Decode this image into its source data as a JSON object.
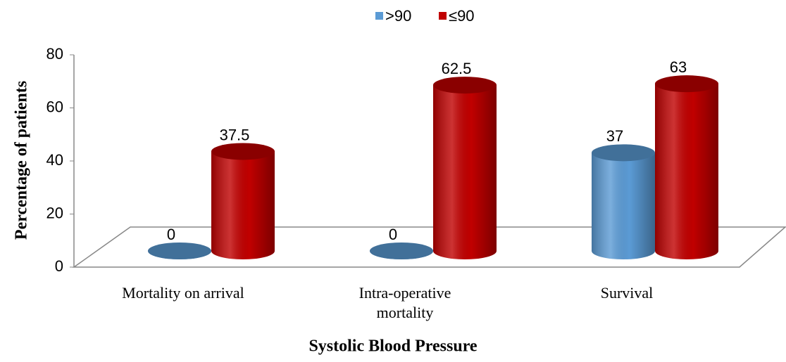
{
  "chart_data": {
    "type": "bar3d",
    "categories": [
      "Mortality on arrival",
      "Intra-operative mortality",
      "Survival"
    ],
    "series": [
      {
        "name": ">90",
        "color": "#5b9bd5",
        "values": [
          0,
          0,
          37
        ]
      },
      {
        "name": "≤90",
        "color": "#c00000",
        "values": [
          37.5,
          62.5,
          63
        ]
      }
    ],
    "ylim": [
      0,
      80
    ],
    "yticks": [
      0,
      20,
      40,
      60,
      80
    ],
    "y_label": "Percentage of patients",
    "x_label": "Systolic Blood Pressure",
    "legend": "top"
  }
}
